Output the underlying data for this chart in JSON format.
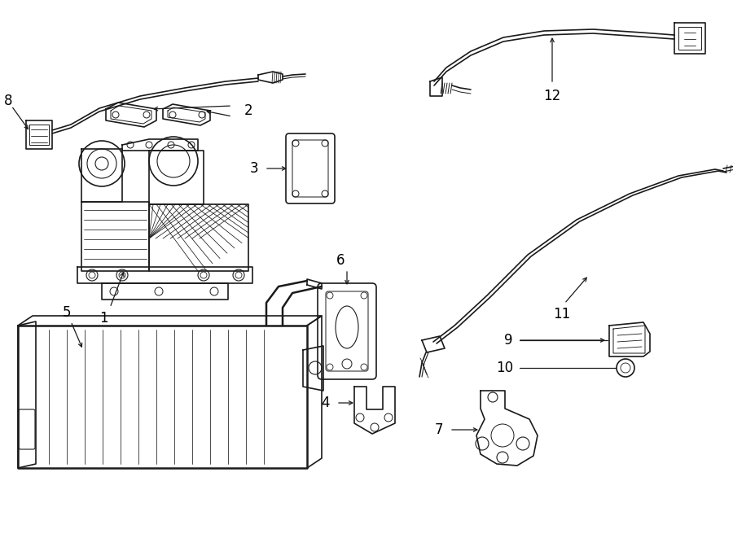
{
  "background_color": "#ffffff",
  "line_color": "#1a1a1a",
  "figsize": [
    9.0,
    6.61
  ],
  "dpi": 100,
  "lw": 1.2,
  "lw_thick": 1.8
}
